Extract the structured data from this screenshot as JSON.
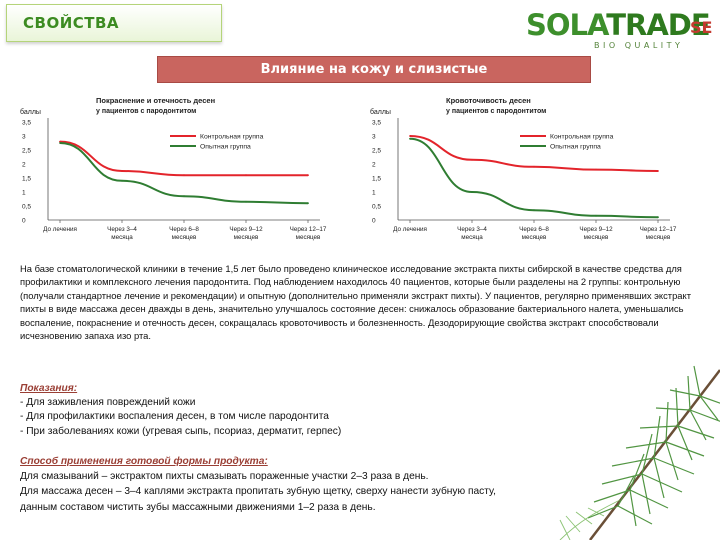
{
  "header": {
    "section_label": "СВОЙСТВА",
    "logo_sola": "SOLA",
    "logo_trade": "TRADE",
    "logo_se": "SE",
    "logo_sub": "BIO QUALITY"
  },
  "title": "Влияние на кожу и слизистые",
  "colors": {
    "control": "#e3242b",
    "experimental": "#2f7d32",
    "accent_green": "#3c8b21",
    "banner": "#c9655f"
  },
  "chart_data": [
    {
      "type": "line",
      "title": "Покраснение и отечность десен",
      "subtitle": "у пациентов с пародонтитом",
      "ylabel": "баллы",
      "ylim": [
        0,
        3.5
      ],
      "yticks": [
        "0",
        "0,5",
        "1",
        "1,5",
        "2",
        "2,5",
        "3",
        "3,5"
      ],
      "categories": [
        "До лечения",
        "Через 3–4 месяца",
        "Через 6–8 месяцев",
        "Через 9–12 месяцев",
        "Через 12–17 месяцев"
      ],
      "category_lines": [
        [
          "До лечения",
          ""
        ],
        [
          "Через 3–4",
          "месяца"
        ],
        [
          "Через 6–8",
          "месяцев"
        ],
        [
          "Через 9–12",
          "месяцев"
        ],
        [
          "Через 12–17",
          "месяцев"
        ]
      ],
      "series": [
        {
          "name": "Контрольная группа",
          "color": "#e3242b",
          "values": [
            2.8,
            1.75,
            1.6,
            1.6,
            1.6
          ]
        },
        {
          "name": "Опытная группа",
          "color": "#2f7d32",
          "values": [
            2.75,
            1.4,
            0.85,
            0.65,
            0.6
          ]
        }
      ]
    },
    {
      "type": "line",
      "title": "Кровоточивость десен",
      "subtitle": "у пациентов с пародонтитом",
      "ylabel": "баллы",
      "ylim": [
        0,
        3.5
      ],
      "yticks": [
        "0",
        "0,5",
        "1",
        "1,5",
        "2",
        "2,5",
        "3",
        "3,5"
      ],
      "categories": [
        "До лечения",
        "Через 3–4 месяца",
        "Через 6–8 месяцев",
        "Через 9–12 месяцев",
        "Через 12–17 месяцев"
      ],
      "category_lines": [
        [
          "До лечения",
          ""
        ],
        [
          "Через 3–4",
          "месяца"
        ],
        [
          "Через 6–8",
          "месяцев"
        ],
        [
          "Через 9–12",
          "месяцев"
        ],
        [
          "Через 12–17",
          "месяцев"
        ]
      ],
      "series": [
        {
          "name": "Контрольная группа",
          "color": "#e3242b",
          "values": [
            3.0,
            2.15,
            1.9,
            1.8,
            1.75
          ]
        },
        {
          "name": "Опытная группа",
          "color": "#2f7d32",
          "values": [
            2.9,
            1.0,
            0.35,
            0.15,
            0.1
          ]
        }
      ]
    }
  ],
  "body": {
    "paragraph": "На базе стоматологической клиники в течение 1,5 лет было проведено клиническое исследование экстракта пихты сибирской в качестве средства для профилактики и комплексного лечения пародонтита. Под наблюдением находилось 40 пациентов, которые были разделены на 2 группы: контрольную (получали стандартное лечение и рекомендации) и опытную (дополнительно применяли экстракт пихты). У пациентов, регулярно применявших экстракт пихты в виде массажа десен дважды в день, значительно улучшалось состояние десен: снижалось образование бактериального налета, уменьшались воспаление, покраснение и отечность десен, сокращалась кровоточивость и болезненность. Дезодорирующие свойства экстракт способствовали исчезновению запаха изо рта."
  },
  "indications": {
    "heading": "Показания:",
    "items": [
      "- Для заживления повреждений кожи",
      "- Для профилактики воспаления десен, в том числе пародонтита",
      "- При заболеваниях кожи (угревая сыпь, псориаз, дерматит, герпес)"
    ]
  },
  "usage": {
    "heading": "Способ применения готовой формы продукта:",
    "lines": [
      "Для смазываний – экстрактом пихты смазывать пораженные участки 2–3 раза в день.",
      "Для массажа десен – 3–4 каплями экстракта пропитать зубную щетку, сверху нанести зубную пасту,",
      "данным составом чистить зубы массажными движениями 1–2 раза в день."
    ]
  }
}
